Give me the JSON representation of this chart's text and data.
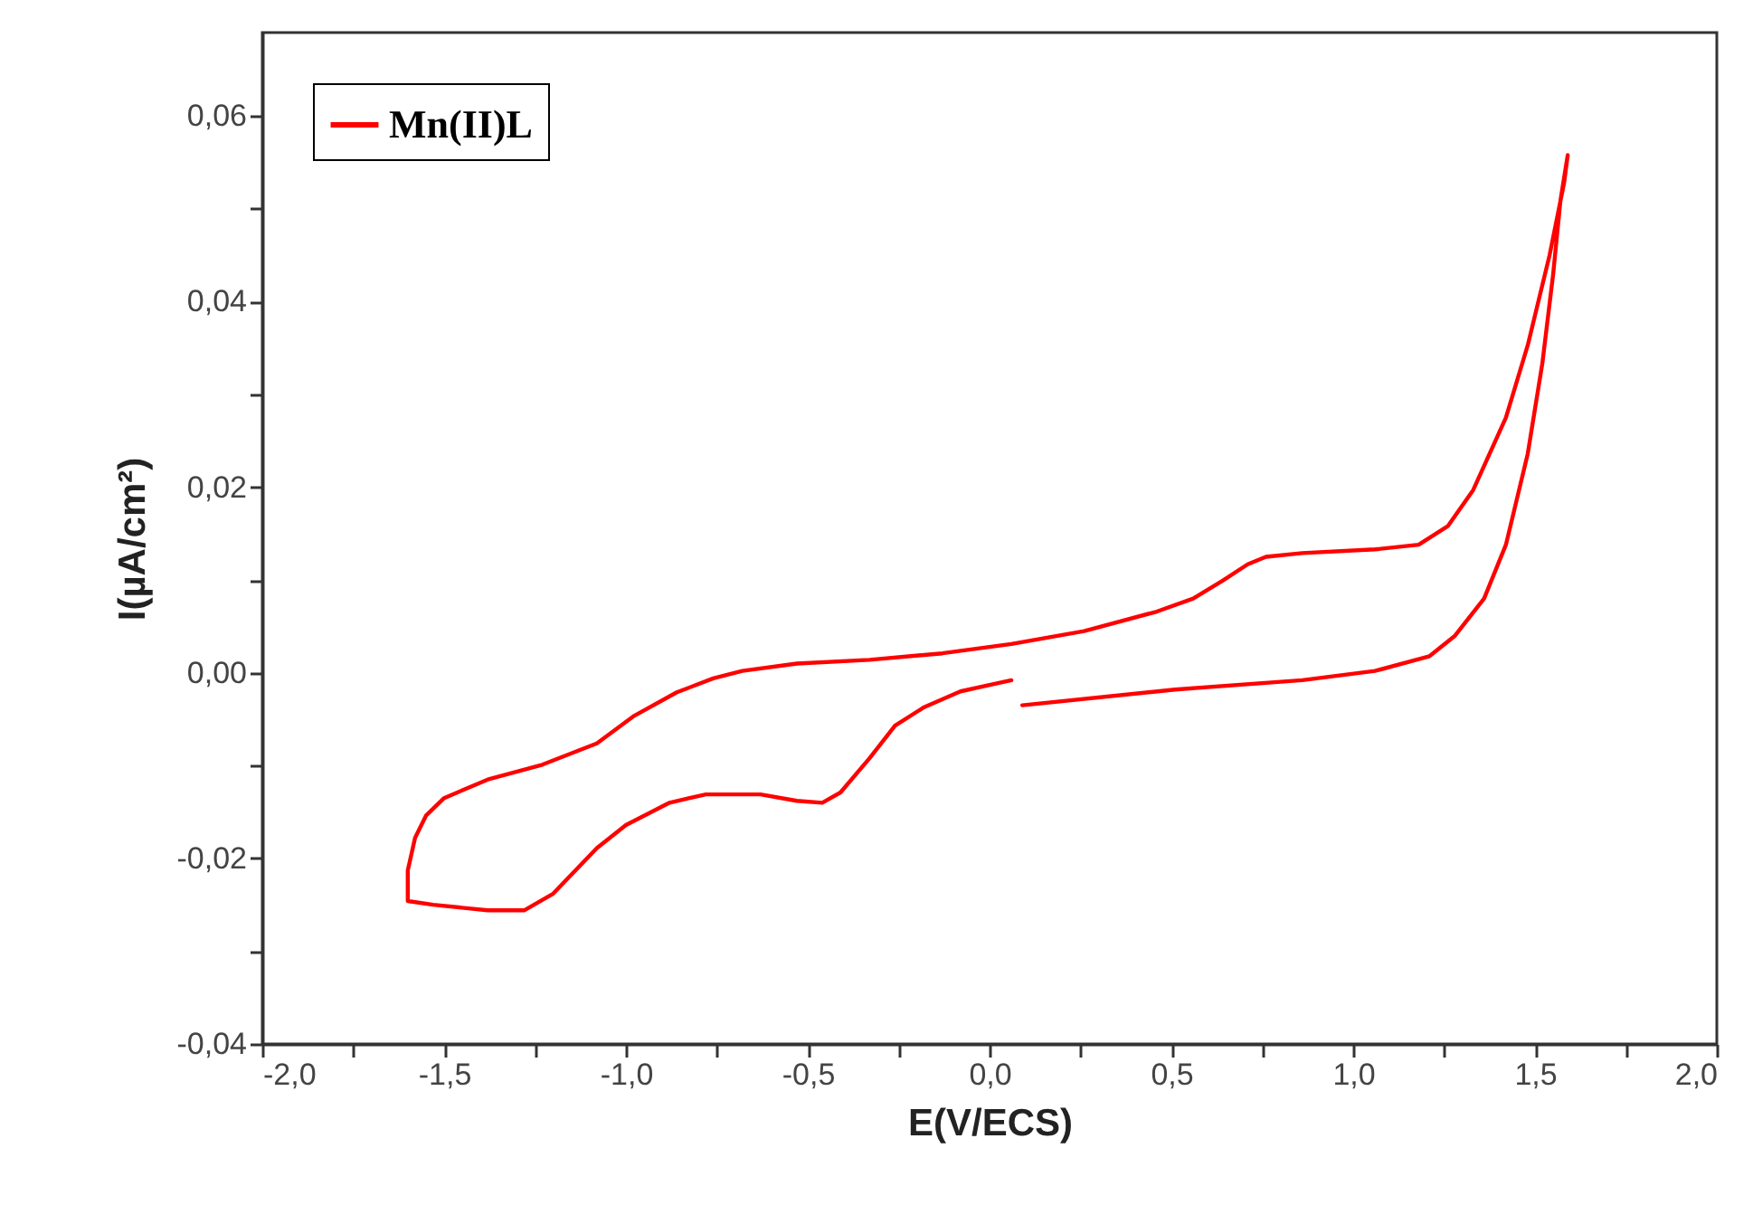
{
  "chart_data": {
    "type": "line",
    "xlabel": "E(V/ECS)",
    "ylabel": "I(µA/cm²)",
    "xlim": [
      -2.0,
      2.0
    ],
    "ylim": [
      -0.04,
      0.069
    ],
    "xticks": [
      {
        "value": -2.0,
        "label": "-2,0"
      },
      {
        "value": -1.75,
        "label": null
      },
      {
        "value": -1.5,
        "label": "-1,5"
      },
      {
        "value": -1.25,
        "label": null
      },
      {
        "value": -1.0,
        "label": "-1,0"
      },
      {
        "value": -0.75,
        "label": null
      },
      {
        "value": -0.5,
        "label": "-0,5"
      },
      {
        "value": -0.25,
        "label": null
      },
      {
        "value": 0.0,
        "label": "0,0"
      },
      {
        "value": 0.25,
        "label": null
      },
      {
        "value": 0.5,
        "label": "0,5"
      },
      {
        "value": 0.75,
        "label": null
      },
      {
        "value": 1.0,
        "label": "1,0"
      },
      {
        "value": 1.25,
        "label": null
      },
      {
        "value": 1.5,
        "label": "1,5"
      },
      {
        "value": 1.75,
        "label": null
      },
      {
        "value": 2.0,
        "label": "2,0"
      }
    ],
    "yticks": [
      {
        "value": -0.04,
        "label": "-0,04"
      },
      {
        "value": -0.03,
        "label": null
      },
      {
        "value": -0.02,
        "label": "-0,02"
      },
      {
        "value": -0.01,
        "label": null
      },
      {
        "value": 0.0,
        "label": "0,00"
      },
      {
        "value": 0.01,
        "label": null
      },
      {
        "value": 0.02,
        "label": "0,02"
      },
      {
        "value": 0.03,
        "label": null
      },
      {
        "value": 0.04,
        "label": "0,04"
      },
      {
        "value": 0.05,
        "label": null
      },
      {
        "value": 0.06,
        "label": "0,06"
      }
    ],
    "grid": false,
    "legend": "top left",
    "marker": "none",
    "line_style": "solid",
    "series": [
      {
        "name": "Mn(II)L",
        "color": "#ff0000",
        "x": [
          0.09,
          0.51,
          0.86,
          1.06,
          1.21,
          1.28,
          1.36,
          1.42,
          1.48,
          1.52,
          1.55,
          1.57,
          1.59,
          1.58,
          1.54,
          1.48,
          1.42,
          1.33,
          1.26,
          1.18,
          1.06,
          0.86,
          0.76,
          0.71,
          0.64,
          0.56,
          0.46,
          0.26,
          0.06,
          -0.13,
          -0.33,
          -0.53,
          -0.68,
          -0.76,
          -0.86,
          -0.98,
          -1.08,
          -1.23,
          -1.38,
          -1.5,
          -1.55,
          -1.58,
          -1.6,
          -1.6,
          -1.53,
          -1.38,
          -1.28,
          -1.2,
          -1.08,
          -1.0,
          -0.88,
          -0.78,
          -0.63,
          -0.53,
          -0.46,
          -0.41,
          -0.33,
          -0.26,
          -0.18,
          -0.08,
          0.06
        ],
        "values": [
          -0.0035,
          -0.0018,
          -0.0008,
          0.0002,
          0.0018,
          0.004,
          0.008,
          0.0138,
          0.0236,
          0.0333,
          0.043,
          0.0509,
          0.0558,
          0.0528,
          0.045,
          0.0353,
          0.0275,
          0.0197,
          0.0158,
          0.0138,
          0.0133,
          0.0129,
          0.0125,
          0.0117,
          0.0099,
          0.008,
          0.0066,
          0.0045,
          0.0031,
          0.0021,
          0.0014,
          0.001,
          0.0002,
          -0.0006,
          -0.0021,
          -0.0047,
          -0.0076,
          -0.0099,
          -0.0115,
          -0.0135,
          -0.0154,
          -0.0178,
          -0.0213,
          -0.0246,
          -0.025,
          -0.0256,
          -0.0256,
          -0.0238,
          -0.0189,
          -0.0164,
          -0.014,
          -0.0131,
          -0.0131,
          -0.0138,
          -0.014,
          -0.0129,
          -0.0092,
          -0.0057,
          -0.0037,
          -0.002,
          -0.0008
        ]
      }
    ]
  }
}
